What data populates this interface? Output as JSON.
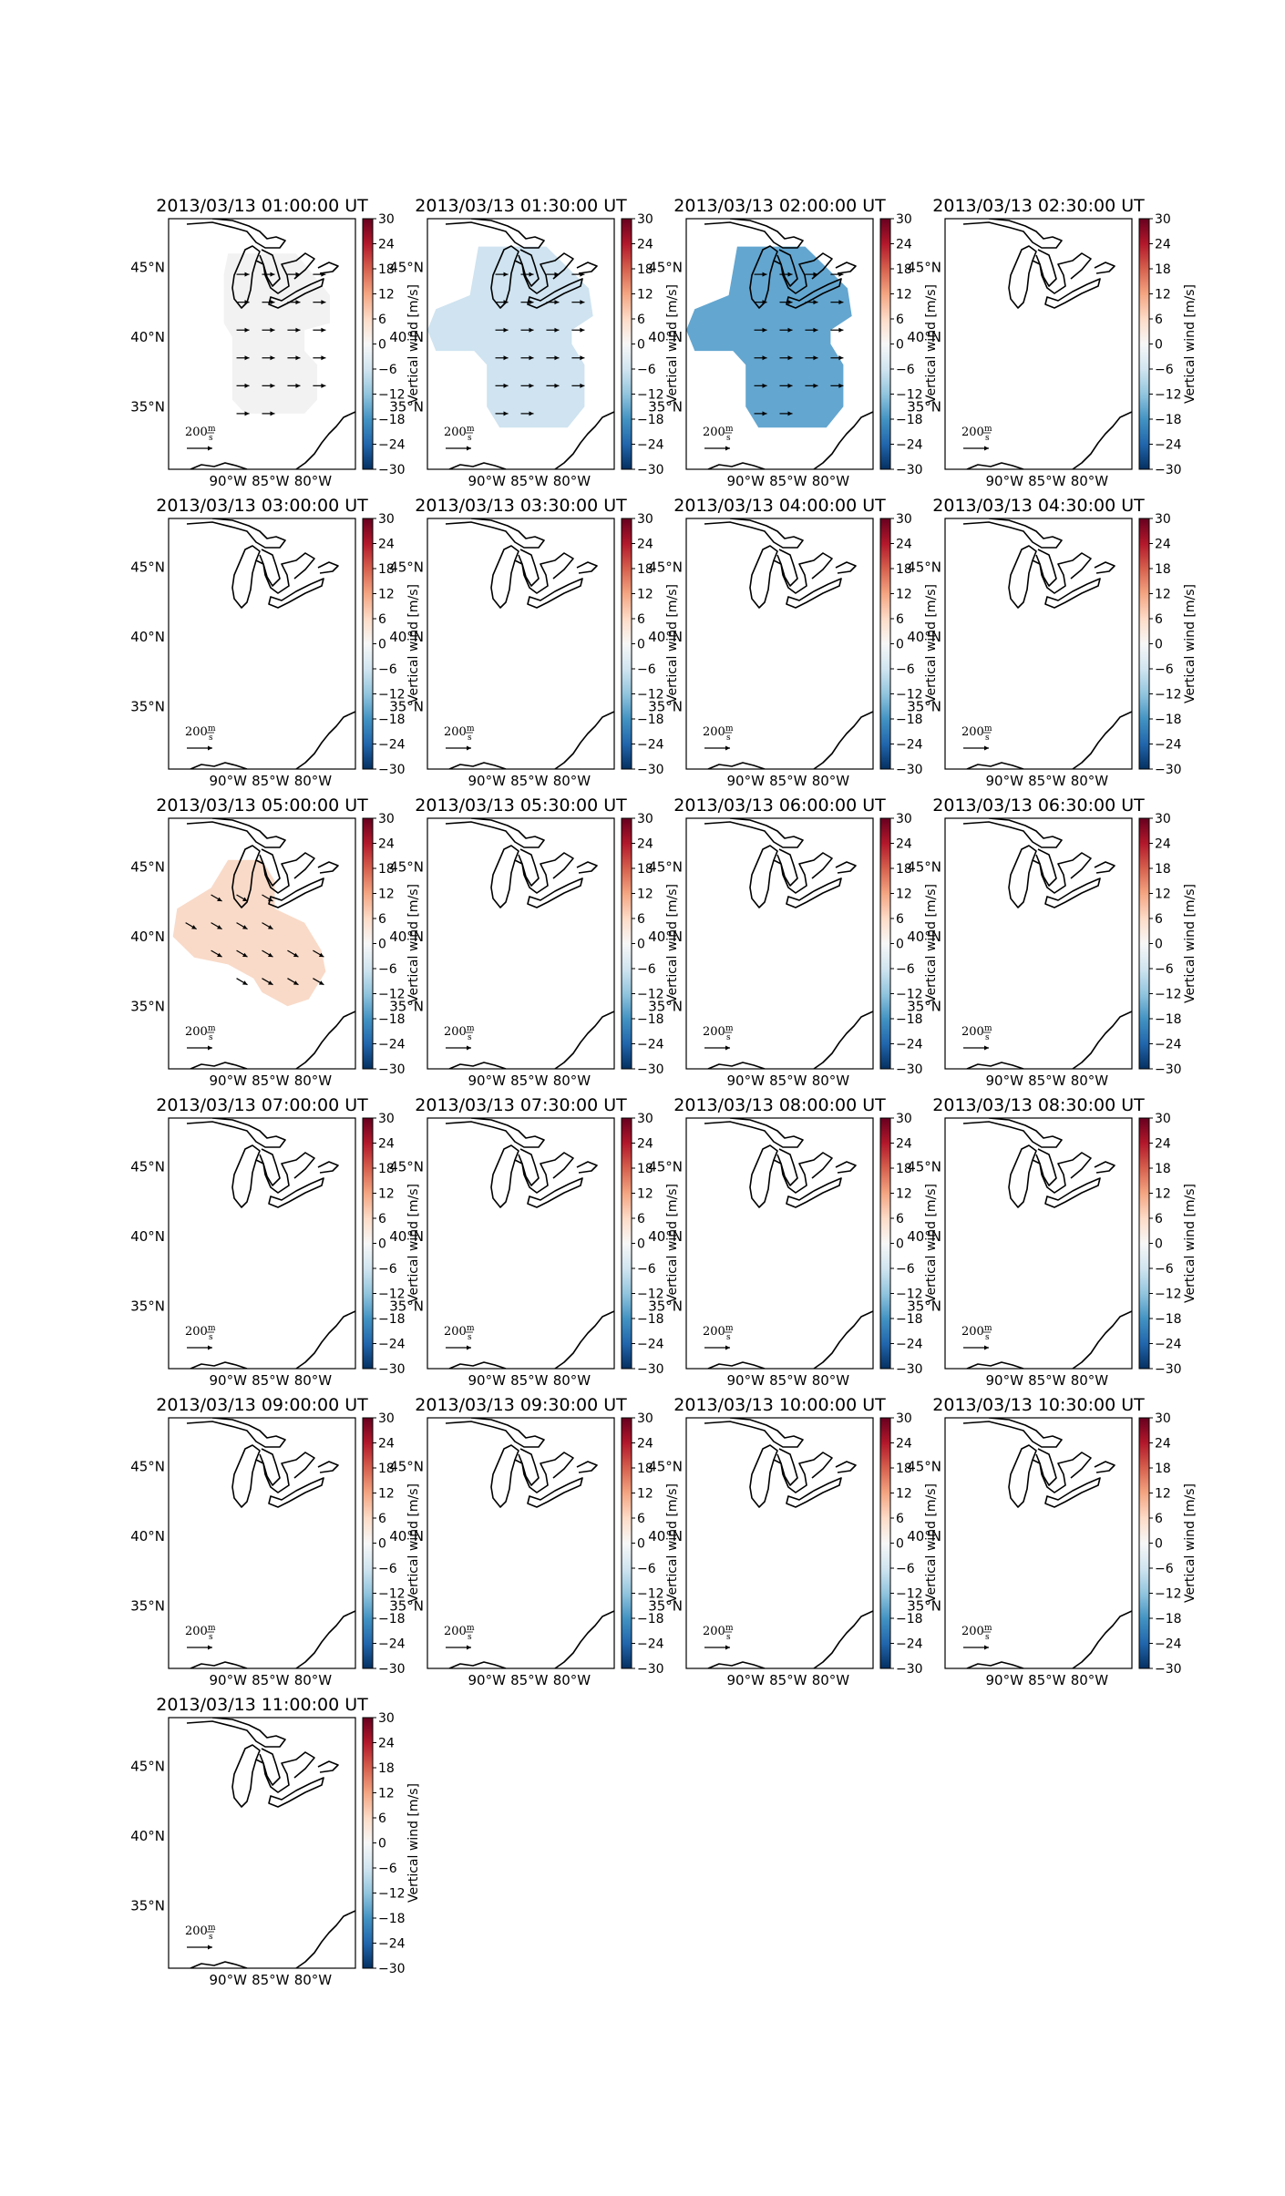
{
  "figure": {
    "panels": [
      {
        "title": "2013/03/13 01:00:00 UT",
        "fill": "#f2f2f2",
        "shape": "A",
        "arrows": "east"
      },
      {
        "title": "2013/03/13 01:30:00 UT",
        "fill": "#cfe3f0",
        "shape": "B",
        "arrows": "east"
      },
      {
        "title": "2013/03/13 02:00:00 UT",
        "fill": "#63a6d0",
        "shape": "B",
        "arrows": "east"
      },
      {
        "title": "2013/03/13 02:30:00 UT",
        "fill": "",
        "shape": "",
        "arrows": ""
      },
      {
        "title": "2013/03/13 03:00:00 UT",
        "fill": "",
        "shape": "",
        "arrows": ""
      },
      {
        "title": "2013/03/13 03:30:00 UT",
        "fill": "",
        "shape": "",
        "arrows": ""
      },
      {
        "title": "2013/03/13 04:00:00 UT",
        "fill": "",
        "shape": "",
        "arrows": ""
      },
      {
        "title": "2013/03/13 04:30:00 UT",
        "fill": "",
        "shape": "",
        "arrows": ""
      },
      {
        "title": "2013/03/13 05:00:00 UT",
        "fill": "#f9dac8",
        "shape": "C",
        "arrows": "southeast"
      },
      {
        "title": "2013/03/13 05:30:00 UT",
        "fill": "",
        "shape": "",
        "arrows": ""
      },
      {
        "title": "2013/03/13 06:00:00 UT",
        "fill": "",
        "shape": "",
        "arrows": ""
      },
      {
        "title": "2013/03/13 06:30:00 UT",
        "fill": "",
        "shape": "",
        "arrows": ""
      },
      {
        "title": "2013/03/13 07:00:00 UT",
        "fill": "",
        "shape": "",
        "arrows": ""
      },
      {
        "title": "2013/03/13 07:30:00 UT",
        "fill": "",
        "shape": "",
        "arrows": ""
      },
      {
        "title": "2013/03/13 08:00:00 UT",
        "fill": "",
        "shape": "",
        "arrows": ""
      },
      {
        "title": "2013/03/13 08:30:00 UT",
        "fill": "",
        "shape": "",
        "arrows": ""
      },
      {
        "title": "2013/03/13 09:00:00 UT",
        "fill": "",
        "shape": "",
        "arrows": ""
      },
      {
        "title": "2013/03/13 09:30:00 UT",
        "fill": "",
        "shape": "",
        "arrows": ""
      },
      {
        "title": "2013/03/13 10:00:00 UT",
        "fill": "",
        "shape": "",
        "arrows": ""
      },
      {
        "title": "2013/03/13 10:30:00 UT",
        "fill": "",
        "shape": "",
        "arrows": ""
      },
      {
        "title": "2013/03/13 11:00:00 UT",
        "fill": "",
        "shape": "",
        "arrows": ""
      }
    ],
    "lat_ticks": [
      "45°N",
      "40°N",
      "35°N"
    ],
    "lon_ticks": [
      "90°W",
      "85°W",
      "80°W"
    ],
    "colorbar": {
      "label": "Vertical wind [m/s]",
      "ticks": [
        "30",
        "24",
        "18",
        "12",
        "6",
        "0",
        "−6",
        "−12",
        "−18",
        "−24",
        "−30"
      ],
      "colors": [
        "#67001f",
        "#b2182b",
        "#d6604d",
        "#f4a582",
        "#fddbc7",
        "#f7f7f7",
        "#d1e5f0",
        "#92c5de",
        "#4393c3",
        "#2166ac",
        "#053061"
      ]
    },
    "scale_arrow": {
      "value": "200",
      "unit_num": "m",
      "unit_den": "s"
    }
  }
}
